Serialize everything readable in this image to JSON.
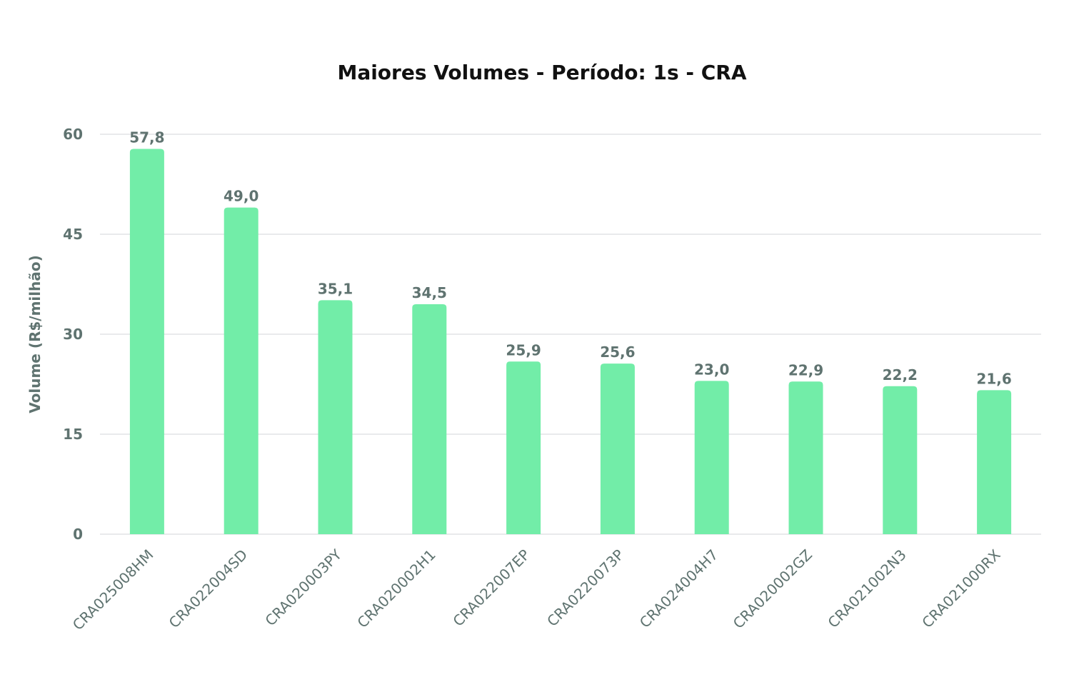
{
  "chart_data": {
    "type": "bar",
    "title": "Maiores Volumes - Período: 1s - CRA",
    "xlabel": "",
    "ylabel": "Volume (R$/milhão)",
    "ylim": [
      0,
      60
    ],
    "yticks": [
      "0",
      "15",
      "30",
      "45",
      "60"
    ],
    "categories": [
      "CRA025008HM",
      "CRA022004SD",
      "CRA020003PY",
      "CRA020002H1",
      "CRA022007EP",
      "CRA0220073P",
      "CRA024004H7",
      "CRA020002GZ",
      "CRA021002N3",
      "CRA021000RX"
    ],
    "values": [
      57.8,
      49.0,
      35.1,
      34.5,
      25.9,
      25.6,
      23.0,
      22.9,
      22.2,
      21.6
    ],
    "data_labels": [
      "57,8",
      "49,0",
      "35,1",
      "34,5",
      "25,9",
      "25,6",
      "23,0",
      "22,9",
      "22,2",
      "21,6"
    ],
    "grid": true,
    "legend": "none",
    "bar_color": "#72eda8"
  }
}
